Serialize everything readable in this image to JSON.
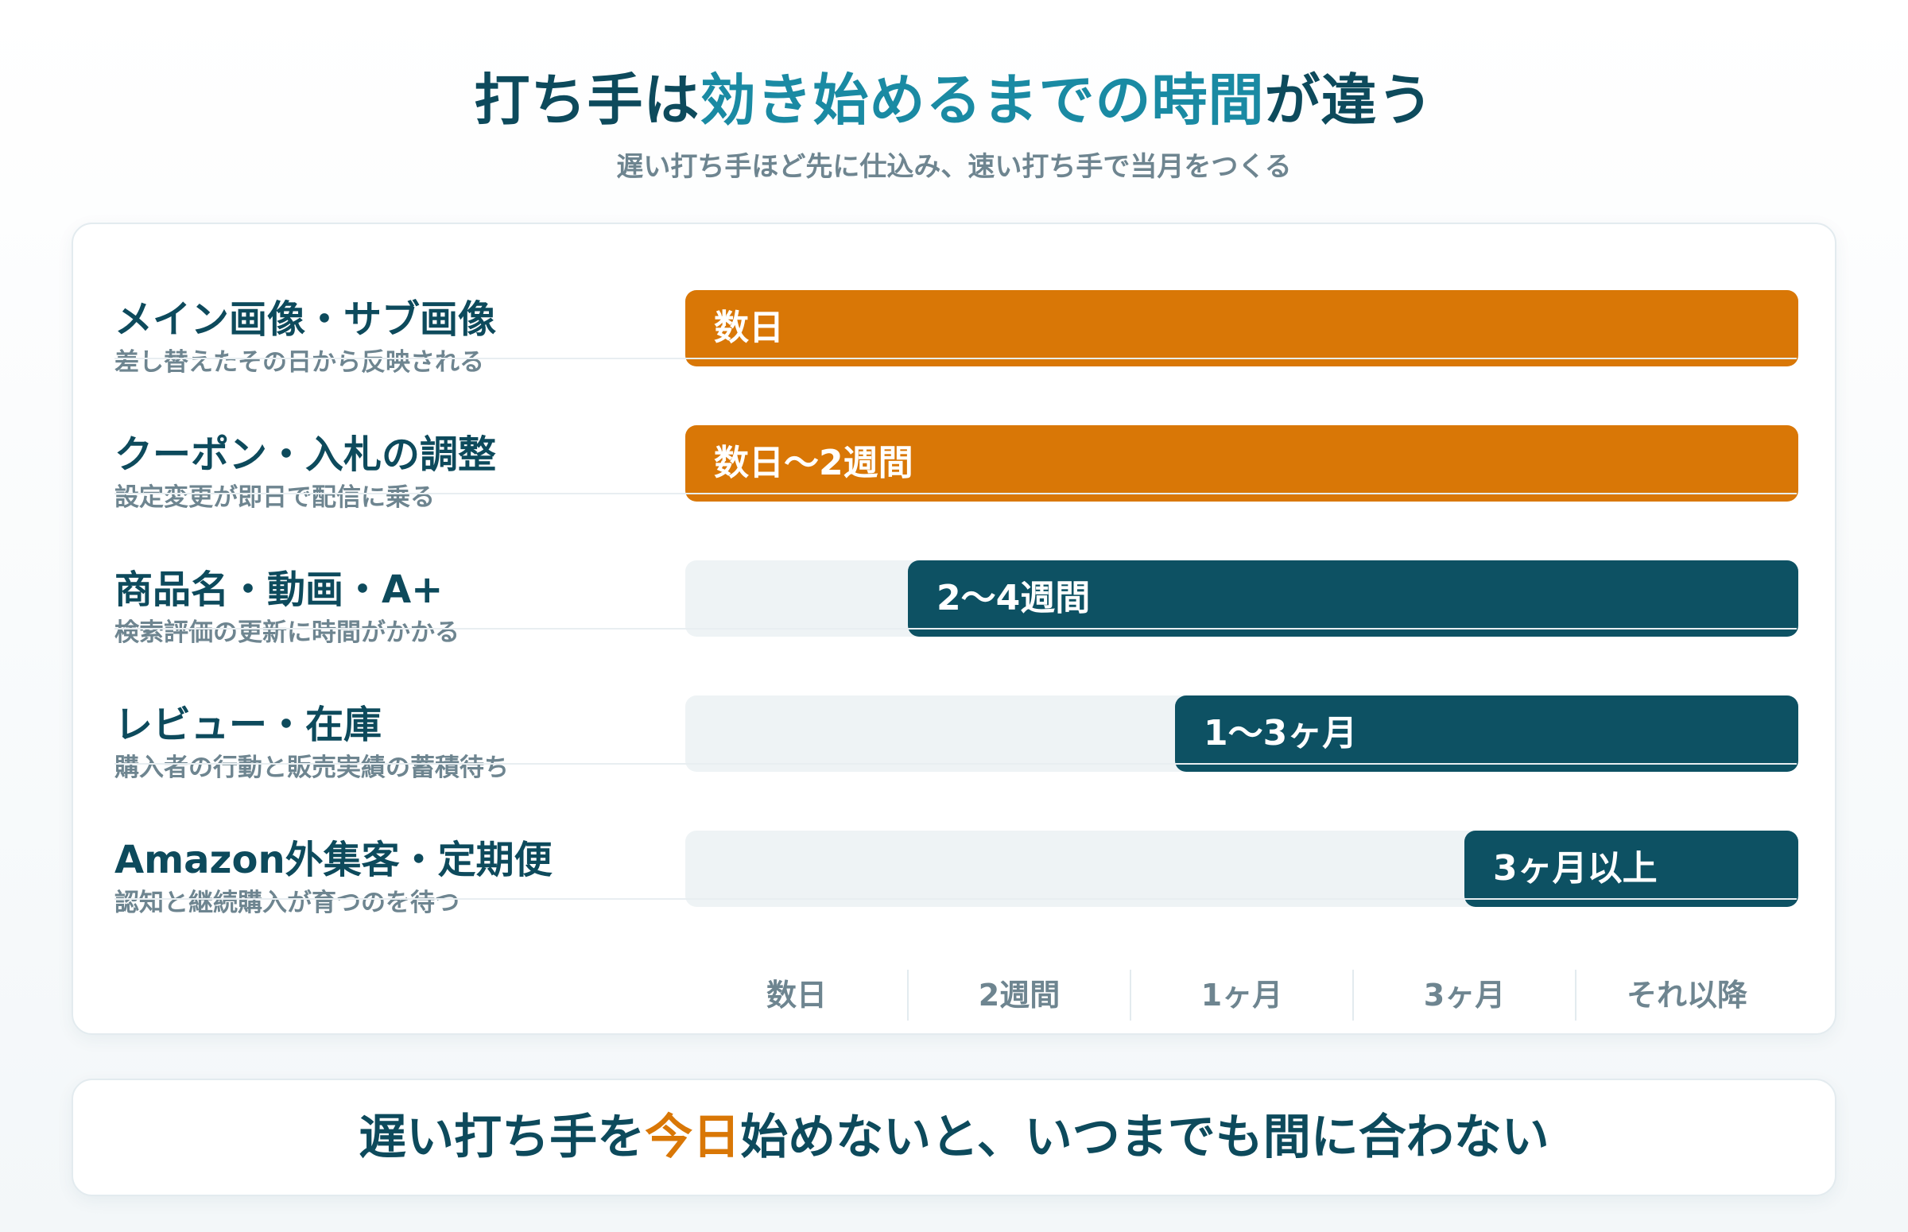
{
  "header": {
    "title_part1": "打ち手は",
    "title_accent": "効き始めるまでの時間",
    "title_part2": "が違う",
    "subtitle": "遅い打ち手ほど先に仕込み、速い打ち手で当月をつくる"
  },
  "colors": {
    "fast": "#d97706",
    "slow": "#0d5163",
    "track": "#eef3f5",
    "accent": "#1a8aa3"
  },
  "chart_data": {
    "type": "bar",
    "orientation": "horizontal",
    "axis_ticks": [
      "数日",
      "2週間",
      "1ヶ月",
      "3ヶ月",
      "それ以降"
    ],
    "rows": [
      {
        "label": "メイン画像・サブ画像",
        "desc": "差し替えたその日から反映される",
        "value_label": "数日",
        "start": 0.0,
        "end": 1.0,
        "speed": "fast"
      },
      {
        "label": "クーポン・入札の調整",
        "desc": "設定変更が即日で配信に乗る",
        "value_label": "数日〜2週間",
        "start": 0.0,
        "end": 1.0,
        "speed": "fast"
      },
      {
        "label": "商品名・動画・A+",
        "desc": "検索評価の更新に時間がかかる",
        "value_label": "2〜4週間",
        "start": 0.2,
        "end": 1.0,
        "speed": "slow"
      },
      {
        "label": "レビュー・在庫",
        "desc": "購入者の行動と販売実績の蓄積待ち",
        "value_label": "1〜3ヶ月",
        "start": 0.44,
        "end": 1.0,
        "speed": "slow"
      },
      {
        "label": "Amazon外集客・定期便",
        "desc": "認知と継続購入が育つのを待つ",
        "value_label": "3ヶ月以上",
        "start": 0.7,
        "end": 1.0,
        "speed": "slow"
      }
    ]
  },
  "footer": {
    "part1": "遅い打ち手を",
    "highlight": "今日",
    "part2": "始めないと、いつまでも間に合わない"
  }
}
